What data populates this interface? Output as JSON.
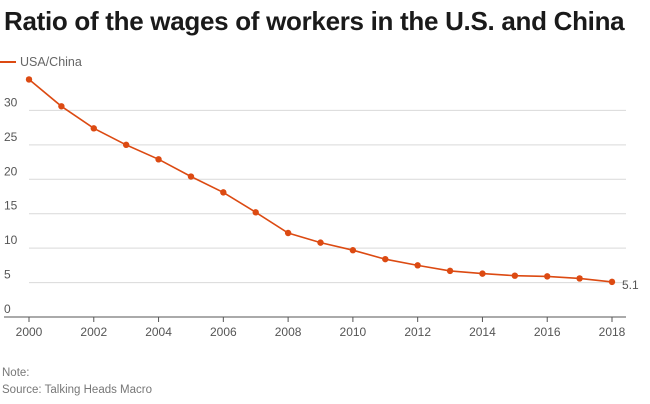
{
  "title": "Ratio of the wages of workers in the U.S. and China",
  "note_label": "Note:",
  "source_label": "Source: Talking Heads Macro",
  "colors": {
    "series": "#dc4a12",
    "grid": "#d9d9d9",
    "axis": "#555555"
  },
  "chart_data": {
    "type": "line",
    "title": "Ratio of the wages of workers in the U.S. and China",
    "xlabel": "",
    "ylabel": "",
    "xlim": [
      2000,
      2018
    ],
    "ylim": [
      0,
      35
    ],
    "x_ticks": [
      2000,
      2002,
      2004,
      2006,
      2008,
      2010,
      2012,
      2014,
      2016,
      2018
    ],
    "y_ticks": [
      0,
      5,
      10,
      15,
      20,
      25,
      30
    ],
    "grid": true,
    "legend": "top-left",
    "series": [
      {
        "name": "USA/China",
        "x": [
          2000,
          2001,
          2002,
          2003,
          2004,
          2005,
          2006,
          2007,
          2008,
          2009,
          2010,
          2011,
          2012,
          2013,
          2014,
          2015,
          2016,
          2017,
          2018
        ],
        "values": [
          34.5,
          30.6,
          27.4,
          25.0,
          22.9,
          20.4,
          18.1,
          15.2,
          12.2,
          10.8,
          9.7,
          8.4,
          7.5,
          6.7,
          6.3,
          6.0,
          5.9,
          5.6,
          5.1
        ]
      }
    ],
    "end_label": "5.1"
  }
}
